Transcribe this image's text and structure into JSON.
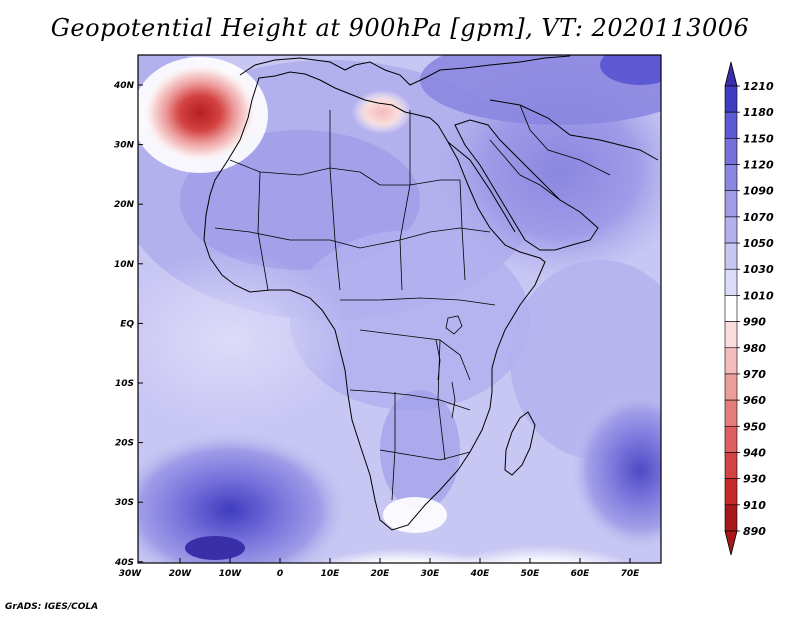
{
  "title": "Geopotential Height at 900hPa [gpm], VT: 2020113006",
  "credit": "GrADS: IGES/COLA",
  "map": {
    "lon_ticks": [
      "30W",
      "20W",
      "10W",
      "0",
      "10E",
      "20E",
      "30E",
      "40E",
      "50E",
      "60E",
      "70E"
    ],
    "lat_ticks": [
      "40N",
      "30N",
      "20N",
      "10N",
      "EQ",
      "10S",
      "20S",
      "30S",
      "40S"
    ]
  },
  "colorbar": {
    "levels": [
      "1210",
      "1180",
      "1150",
      "1120",
      "1090",
      "1070",
      "1050",
      "1030",
      "1010",
      "990",
      "980",
      "970",
      "960",
      "950",
      "940",
      "930",
      "910",
      "890"
    ],
    "colors": [
      "#3a2fa8",
      "#3f3cbf",
      "#5d59d3",
      "#7671db",
      "#8b86e0",
      "#a09ce8",
      "#b3b0ee",
      "#c8c6f3",
      "#dcdbf8",
      "#ffffff",
      "#f9dcdc",
      "#f4bcbc",
      "#ed9c9c",
      "#e57d7d",
      "#de5f5f",
      "#d44242",
      "#c42a2a",
      "#a81818"
    ]
  }
}
